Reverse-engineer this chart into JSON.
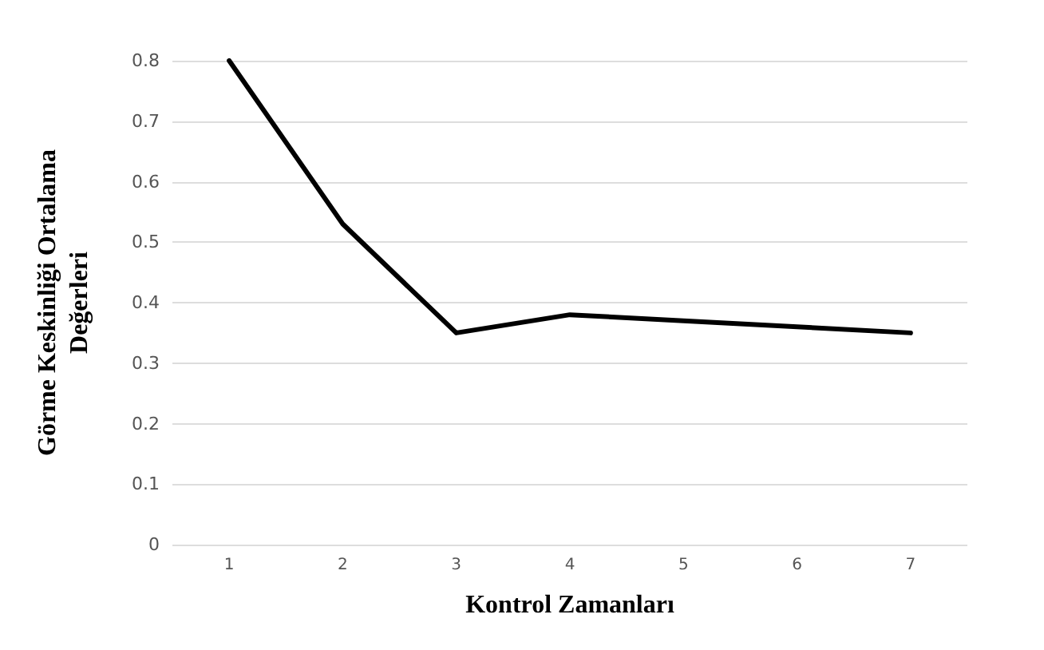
{
  "chart_data": {
    "type": "line",
    "xlabel": "Kontrol Zamanları",
    "ylabel": "Görme Keskinliği Ortalama Değerleri",
    "categories": [
      "1",
      "2",
      "3",
      "4",
      "5",
      "6",
      "7"
    ],
    "series": [
      {
        "color": "#000000",
        "values": [
          0.8,
          0.53,
          0.35,
          0.38,
          0.37,
          0.36,
          0.35
        ]
      }
    ],
    "ylim": [
      0,
      0.8
    ],
    "yticks": [
      0,
      0.1,
      0.2,
      0.3,
      0.4,
      0.5,
      0.6,
      0.7,
      0.8
    ],
    "grid": "y",
    "marker": "none",
    "line_style": "solid"
  }
}
